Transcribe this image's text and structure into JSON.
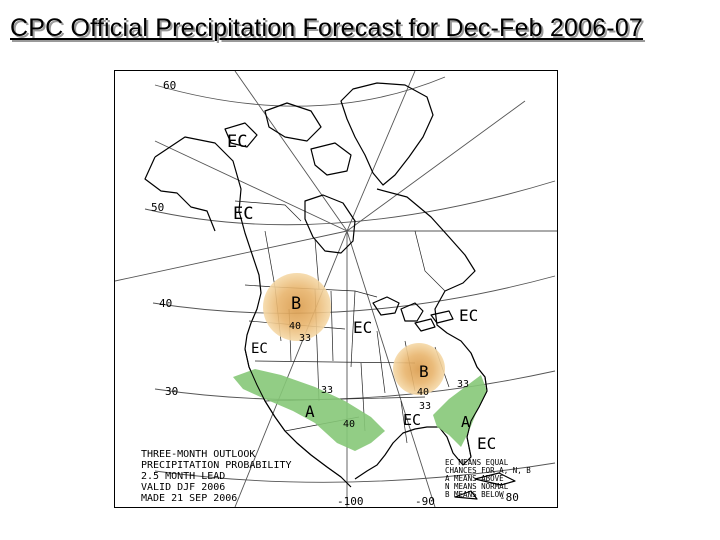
{
  "slide": {
    "title": "CPC Official Precipitation Forecast for Dec-Feb 2006-07"
  },
  "map": {
    "latitude_labels": [
      "60",
      "50",
      "40",
      "30"
    ],
    "longitude_labels": [
      "-100",
      "-90",
      "-80"
    ],
    "regions": [
      {
        "label": "EC"
      },
      {
        "label": "EC"
      },
      {
        "label": "B"
      },
      {
        "label": "EC"
      },
      {
        "label": "EC"
      },
      {
        "label": "EC"
      },
      {
        "label": "B"
      },
      {
        "label": "A"
      },
      {
        "label": "EC"
      },
      {
        "label": "A"
      },
      {
        "label": "EC"
      }
    ],
    "contour_labels": [
      "40",
      "33",
      "33",
      "40",
      "40",
      "33",
      "33"
    ],
    "colors": {
      "below": "#e8b46c",
      "above": "#7cc46e"
    }
  },
  "info_block": {
    "lines": [
      "THREE-MONTH OUTLOOK",
      "PRECIPITATION PROBABILITY",
      "2.5 MONTH LEAD",
      "VALID DJF 2006",
      "MADE 21 SEP 2006"
    ]
  },
  "legend": {
    "lines": [
      "EC MEANS EQUAL",
      "CHANCES FOR A, N, B",
      "A MEANS ABOVE",
      "N MEANS NORMAL",
      "B MEANS BELOW"
    ]
  }
}
